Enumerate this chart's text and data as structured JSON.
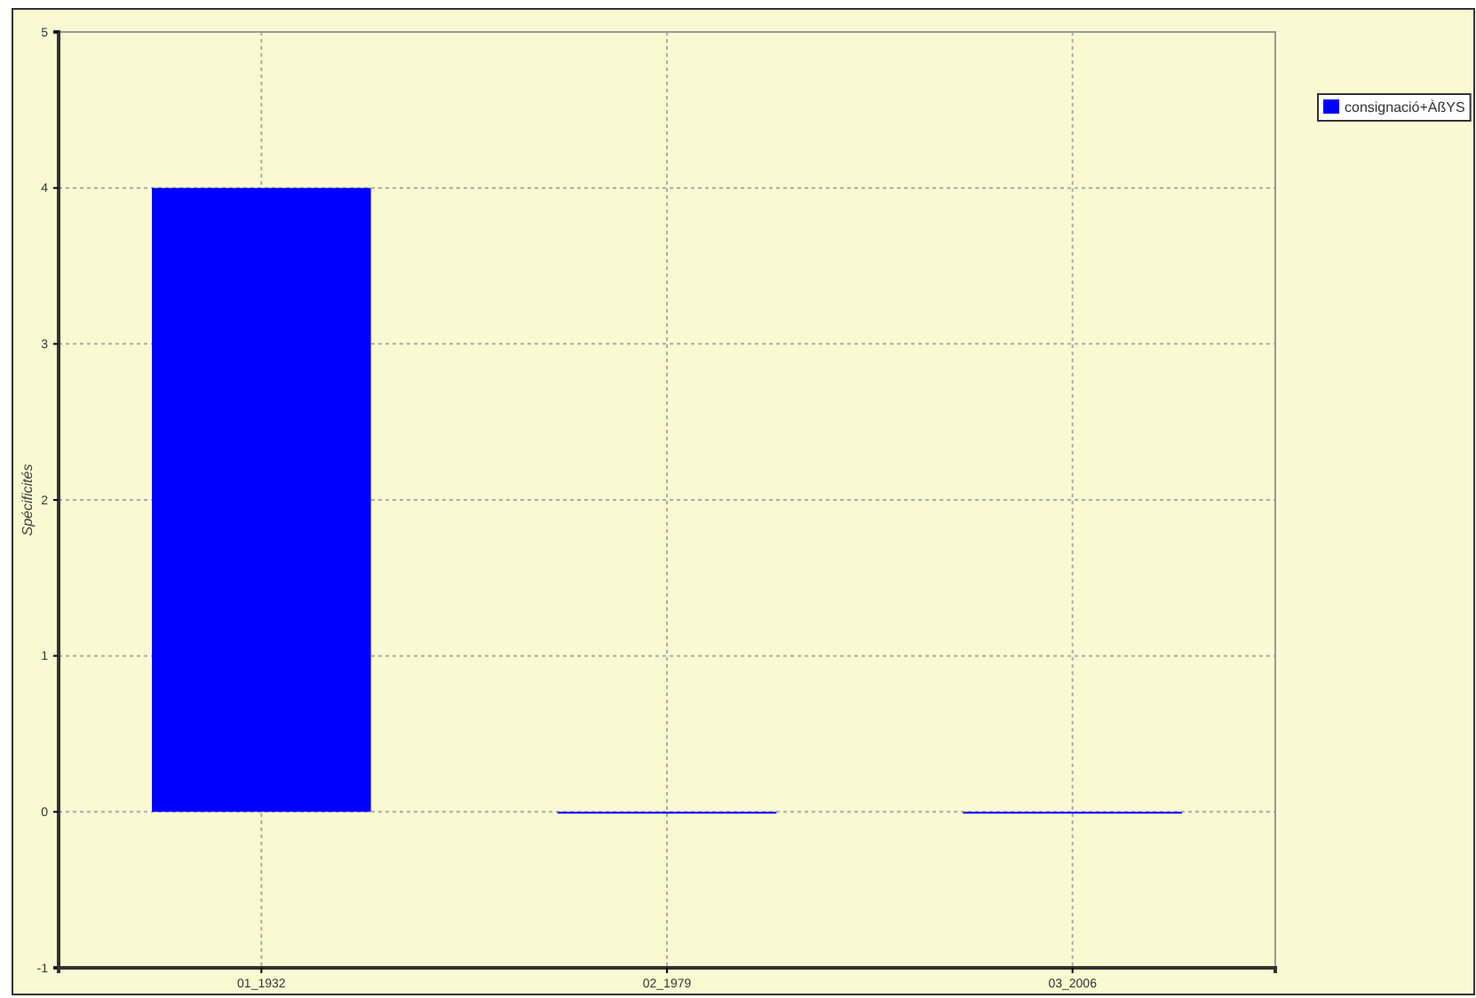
{
  "chart_data": {
    "type": "bar",
    "ylabel": "Spécificités",
    "categories": [
      "01_1932",
      "02_1979",
      "03_2006"
    ],
    "series": [
      {
        "name": "consignació+ÀßYS",
        "color": "#0000ff",
        "values": [
          4,
          0,
          0
        ]
      }
    ],
    "ylim": [
      -1,
      5
    ],
    "yticks": [
      -1,
      0,
      1,
      2,
      3,
      4,
      5
    ],
    "grid": true,
    "legend": "top right"
  }
}
